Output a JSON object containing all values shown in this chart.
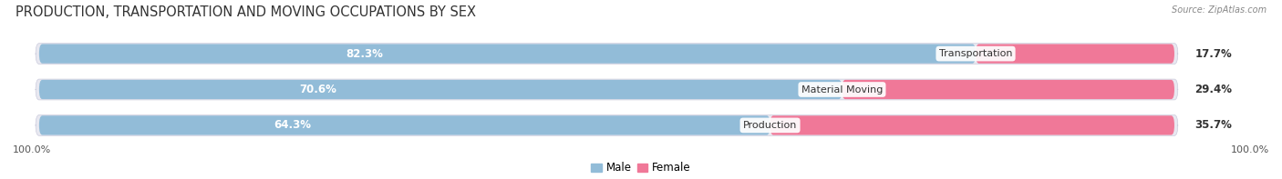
{
  "title": "PRODUCTION, TRANSPORTATION AND MOVING OCCUPATIONS BY SEX",
  "source": "Source: ZipAtlas.com",
  "categories": [
    "Transportation",
    "Material Moving",
    "Production"
  ],
  "male_values": [
    82.3,
    70.6,
    64.3
  ],
  "female_values": [
    17.7,
    29.4,
    35.7
  ],
  "male_color": "#92bcd8",
  "female_color": "#f07898",
  "male_light_color": "#c8dff0",
  "female_light_color": "#f8b8c8",
  "male_label_color": "#ffffff",
  "female_label_color": "#333333",
  "category_label_color": "#333333",
  "background_color": "#ffffff",
  "bar_bg_color": "#e8e8f0",
  "title_fontsize": 10.5,
  "bar_label_fontsize": 8.5,
  "category_fontsize": 8,
  "axis_label_fontsize": 8,
  "legend_fontsize": 8.5,
  "left_label": "100.0%",
  "right_label": "100.0%",
  "total_width": 100
}
